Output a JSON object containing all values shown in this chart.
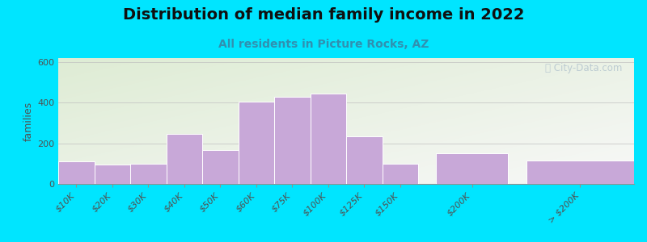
{
  "title": "Distribution of median family income in 2022",
  "subtitle": "All residents in Picture Rocks, AZ",
  "ylabel": "families",
  "categories": [
    "$10K",
    "$20K",
    "$30K",
    "$40K",
    "$50K",
    "$60K",
    "$75K",
    "$100K",
    "$125K",
    "$150K",
    "$200K",
    "> $200K"
  ],
  "values": [
    110,
    95,
    100,
    245,
    165,
    405,
    430,
    445,
    235,
    100,
    150,
    115
  ],
  "bar_color": "#c8a8d8",
  "bar_edge_color": "#ffffff",
  "ylim": [
    0,
    620
  ],
  "yticks": [
    0,
    200,
    400,
    600
  ],
  "background_outer": "#00e5ff",
  "background_inner_top_left": "#deecd4",
  "background_inner_bottom_right": "#f8f8f8",
  "title_fontsize": 14,
  "subtitle_fontsize": 10,
  "subtitle_color": "#3090b0",
  "watermark_text": "ⓘ City-Data.com",
  "watermark_color": "#b8c8d0",
  "axis_label_fontsize": 9,
  "tick_label_fontsize": 8,
  "bar_groups": [
    {
      "start": 0,
      "end": 3,
      "gap_after": false
    },
    {
      "start": 3,
      "end": 8,
      "gap_after": false
    },
    {
      "start": 8,
      "end": 9,
      "gap_after": false
    },
    {
      "start": 9,
      "end": 10,
      "gap_after": false
    },
    {
      "start": 10,
      "end": 11,
      "gap_after": false
    },
    {
      "start": 11,
      "end": 12,
      "gap_after": false
    }
  ],
  "x_positions": [
    0,
    1,
    2,
    3,
    4,
    5,
    6,
    7,
    8,
    9,
    11,
    14
  ],
  "bar_widths": [
    1,
    1,
    1,
    1,
    1,
    1,
    1,
    1,
    1,
    1,
    2,
    3
  ]
}
